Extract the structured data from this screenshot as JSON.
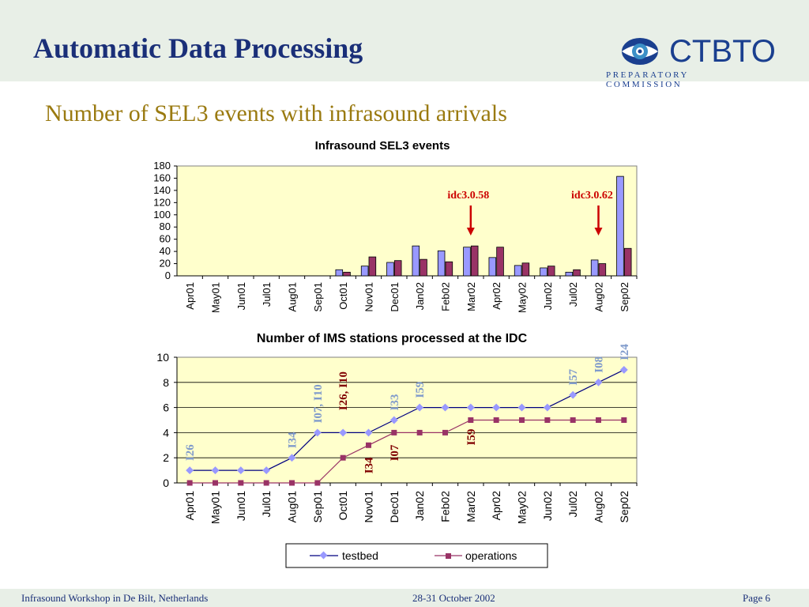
{
  "header": {
    "title": "Automatic Data Processing",
    "logo_text": "CTBTO",
    "logo_subtext": "PREPARATORY COMMISSION"
  },
  "subtitle": "Number of SEL3 events with infrasound arrivals",
  "colors": {
    "header_bg": "#e8efe7",
    "plot_bg": "#ffffcc",
    "series_a": "#9999ff",
    "series_b": "#993366",
    "testbed": "#000080",
    "operations": "#993366",
    "anno_red": "#cc0000",
    "anno_blue": "#7f9acb",
    "anno_dark": "#800000"
  },
  "chart_data": [
    {
      "type": "bar",
      "title": "Infrasound SEL3 events",
      "categories": [
        "Apr01",
        "May01",
        "Jun01",
        "Jul01",
        "Aug01",
        "Sep01",
        "Oct01",
        "Nov01",
        "Dec01",
        "Jan02",
        "Feb02",
        "Mar02",
        "Apr02",
        "May02",
        "Jun02",
        "Jul02",
        "Aug02",
        "Sep02"
      ],
      "series": [
        {
          "values": [
            0,
            0,
            0,
            0,
            0,
            0,
            10,
            16,
            22,
            49,
            41,
            47,
            30,
            17,
            13,
            6,
            26,
            163
          ]
        },
        {
          "values": [
            0,
            0,
            0,
            0,
            0,
            0,
            6,
            31,
            25,
            27,
            23,
            49,
            47,
            21,
            16,
            10,
            20,
            45
          ]
        }
      ],
      "ylim": [
        0,
        180
      ],
      "yticks": [
        0,
        20,
        40,
        60,
        80,
        100,
        120,
        140,
        160,
        180
      ],
      "annotations": [
        {
          "text": "idc3.0.58",
          "category": "Mar02"
        },
        {
          "text": "idc3.0.62",
          "category": "Aug02"
        }
      ]
    },
    {
      "type": "line",
      "title": "Number of IMS stations processed at the IDC",
      "categories": [
        "Apr01",
        "May01",
        "Jun01",
        "Jul01",
        "Aug01",
        "Sep01",
        "Oct01",
        "Nov01",
        "Dec01",
        "Jan02",
        "Feb02",
        "Mar02",
        "Apr02",
        "May02",
        "Jun02",
        "Jul02",
        "Aug02",
        "Sep02"
      ],
      "series": [
        {
          "name": "testbed",
          "values": [
            1,
            1,
            1,
            1,
            2,
            4,
            4,
            4,
            5,
            6,
            6,
            6,
            6,
            6,
            6,
            7,
            8,
            9
          ]
        },
        {
          "name": "operations",
          "values": [
            0,
            0,
            0,
            0,
            0,
            0,
            2,
            3,
            4,
            4,
            4,
            5,
            5,
            5,
            5,
            5,
            5,
            5
          ]
        }
      ],
      "ylim": [
        0,
        10
      ],
      "yticks": [
        0,
        2,
        4,
        6,
        8,
        10
      ],
      "legend": "bottom-center",
      "annotations": [
        {
          "text": "I26",
          "series": "testbed",
          "category": "Apr01"
        },
        {
          "text": "I34",
          "series": "testbed",
          "category": "Aug01"
        },
        {
          "text": "I07, I10",
          "series": "testbed",
          "category": "Sep01"
        },
        {
          "text": "I26, I10",
          "series": "operations",
          "category": "Oct01"
        },
        {
          "text": "I34",
          "series": "operations",
          "category": "Nov01"
        },
        {
          "text": "I07",
          "series": "operations",
          "category": "Dec01"
        },
        {
          "text": "I33",
          "series": "testbed",
          "category": "Dec01"
        },
        {
          "text": "I59",
          "series": "testbed",
          "category": "Jan02"
        },
        {
          "text": "I59",
          "series": "operations",
          "category": "Mar02"
        },
        {
          "text": "I57",
          "series": "testbed",
          "category": "Jul02"
        },
        {
          "text": "I08",
          "series": "testbed",
          "category": "Aug02"
        },
        {
          "text": "I24",
          "series": "testbed",
          "category": "Sep02"
        }
      ]
    }
  ],
  "footer": {
    "left": "Infrasound Workshop in De Bilt,  Netherlands",
    "center": "28-31 October 2002",
    "right": "Page 6"
  }
}
